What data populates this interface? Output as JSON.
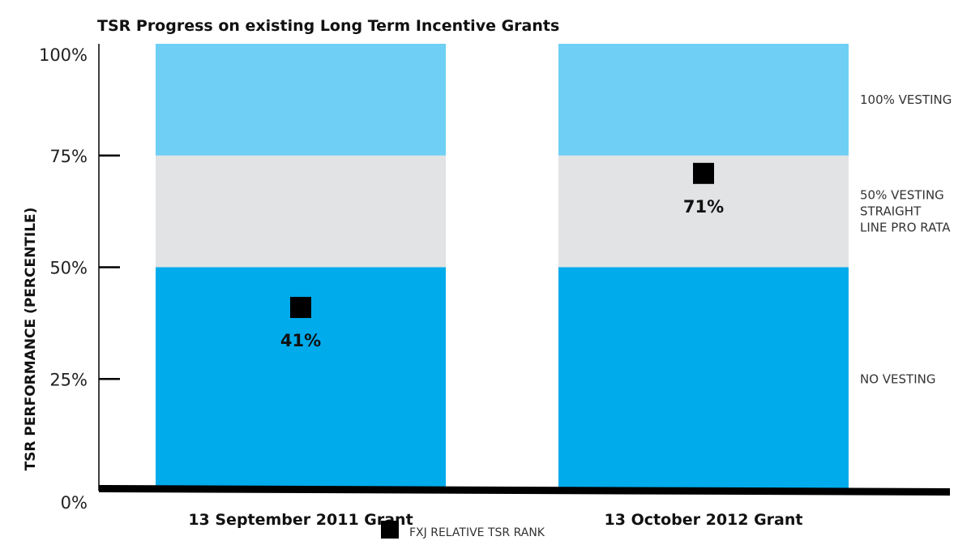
{
  "chart_data": {
    "type": "bar",
    "title": "TSR Progress on existing Long Term Incentive Grants",
    "ylabel": "TSR PERFORMANCE (PERCENTILE)",
    "xlabel": "",
    "ylim": [
      0,
      100
    ],
    "y_ticks": [
      "0%",
      "25%",
      "50%",
      "75%",
      "100%"
    ],
    "y_tick_values": [
      0,
      25,
      50,
      75,
      100
    ],
    "categories": [
      "13 September 2011 Grant",
      "13 October 2012 Grant"
    ],
    "bands": [
      {
        "from": 0,
        "to": 50,
        "label": "NO VESTING",
        "color": "#00abeb"
      },
      {
        "from": 50,
        "to": 75,
        "label": "50% VESTING STRAIGHT LINE PRO RATA",
        "label_lines": [
          "50% VESTING",
          "STRAIGHT",
          "LINE PRO RATA"
        ],
        "color": "#e2e3e5"
      },
      {
        "from": 75,
        "to": 100,
        "label": "100% VESTING",
        "color": "#6fcff5"
      }
    ],
    "series": [
      {
        "name": "FXJ RELATIVE TSR RANK",
        "values": [
          41,
          71
        ],
        "labels": [
          "41%",
          "71%"
        ],
        "color": "#000000"
      }
    ],
    "legend_position": "bottom-center"
  }
}
